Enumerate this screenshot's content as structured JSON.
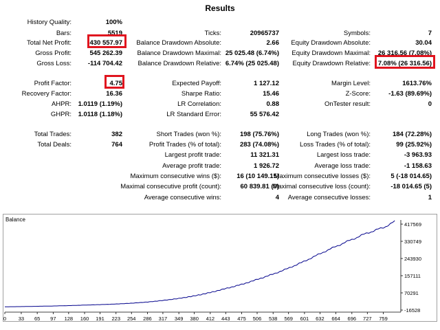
{
  "title": "Results",
  "rows": [
    {
      "y": 27,
      "cols": [
        {
          "label": "History Quality:",
          "value": "100%"
        }
      ]
    },
    {
      "y": 43,
      "cols": [
        {
          "label": "Bars:",
          "value": "5519"
        },
        {
          "label": "Ticks:",
          "value": "20965737"
        },
        {
          "label": "Symbols:",
          "value": "7"
        }
      ]
    },
    {
      "y": 57,
      "cols": [
        {
          "label": "Total Net Profit:",
          "value": "430 557.97"
        },
        {
          "label": "Balance Drawdown Absolute:",
          "value": "2.66"
        },
        {
          "label": "Equity Drawdown Absolute:",
          "value": "30.04"
        }
      ]
    },
    {
      "y": 72,
      "cols": [
        {
          "label": "Gross Profit:",
          "value": "545 262.39"
        },
        {
          "label": "Balance Drawdown Maximal:",
          "value": "25 025.48 (6.74%)"
        },
        {
          "label": "Equity Drawdown Maximal:",
          "value": "26 316.56 (7.08%)"
        }
      ]
    },
    {
      "y": 87,
      "cols": [
        {
          "label": "Gross Loss:",
          "value": "-114 704.42"
        },
        {
          "label": "Balance Drawdown Relative:",
          "value": "6.74% (25 025.48)"
        },
        {
          "label": "Equity Drawdown Relative:",
          "value": "7.08% (26 316.56)"
        }
      ]
    },
    {
      "y": 116,
      "cols": [
        {
          "label": "Profit Factor:",
          "value": "4.75"
        },
        {
          "label": "Expected Payoff:",
          "value": "1 127.12"
        },
        {
          "label": "Margin Level:",
          "value": "1613.76%"
        }
      ]
    },
    {
      "y": 131,
      "cols": [
        {
          "label": "Recovery Factor:",
          "value": "16.36"
        },
        {
          "label": "Sharpe Ratio:",
          "value": "15.46"
        },
        {
          "label": "Z-Score:",
          "value": "-1.63 (89.69%)"
        }
      ]
    },
    {
      "y": 146,
      "cols": [
        {
          "label": "AHPR:",
          "value": "1.0119 (1.19%)"
        },
        {
          "label": "LR Correlation:",
          "value": "0.88"
        },
        {
          "label": "OnTester result:",
          "value": "0"
        }
      ]
    },
    {
      "y": 161,
      "cols": [
        {
          "label": "GHPR:",
          "value": "1.0118 (1.18%)"
        },
        {
          "label": "LR Standard Error:",
          "value": "55 576.42"
        },
        null
      ]
    },
    {
      "y": 190,
      "cols": [
        {
          "label": "Total Trades:",
          "value": "382"
        },
        {
          "label": "Short Trades (won %):",
          "value": "198 (75.76%)"
        },
        {
          "label": "Long Trades (won %):",
          "value": "184 (72.28%)"
        }
      ]
    },
    {
      "y": 205,
      "cols": [
        {
          "label": "Total Deals:",
          "value": "764"
        },
        {
          "label": "Profit Trades (% of total):",
          "value": "283 (74.08%)"
        },
        {
          "label": "Loss Trades (% of total):",
          "value": "99 (25.92%)"
        }
      ]
    },
    {
      "y": 220,
      "cols": [
        null,
        {
          "label": "Largest profit trade:",
          "value": "11 321.31"
        },
        {
          "label": "Largest loss trade:",
          "value": "-3 963.93"
        }
      ]
    },
    {
      "y": 236,
      "cols": [
        null,
        {
          "label": "Average profit trade:",
          "value": "1 926.72"
        },
        {
          "label": "Average loss trade:",
          "value": "-1 158.63"
        }
      ]
    },
    {
      "y": 251,
      "cols": [
        null,
        {
          "label": "Maximum consecutive wins ($):",
          "value": "16 (10 149.15)"
        },
        {
          "label": "Maximum consecutive losses ($):",
          "value": "5 (-18 014.65)"
        }
      ]
    },
    {
      "y": 266,
      "cols": [
        null,
        {
          "label": "Maximal consecutive profit (count):",
          "value": "60 839.81 (9)"
        },
        {
          "label": "Maximal consecutive loss (count):",
          "value": "-18 014.65 (5)"
        }
      ]
    },
    {
      "y": 282,
      "cols": [
        null,
        {
          "label": "Average consecutive wins:",
          "value": "4"
        },
        {
          "label": "Average consecutive losses:",
          "value": "1"
        }
      ]
    }
  ],
  "chart_data": {
    "type": "line",
    "title": "Balance",
    "x_ticks": [
      0,
      33,
      65,
      97,
      128,
      160,
      191,
      223,
      254,
      286,
      317,
      349,
      380,
      412,
      443,
      475,
      506,
      538,
      569,
      601,
      632,
      664,
      696,
      727,
      759
    ],
    "y_ticks": [
      417569,
      330749,
      243930,
      157111,
      70291,
      -16528
    ],
    "ylim": [
      -16528,
      417569
    ],
    "xlim": [
      0,
      790
    ],
    "line_color": "#00008b",
    "series": [
      {
        "x": [
          0,
          33,
          65,
          97,
          128,
          160,
          191,
          223,
          254,
          286,
          317,
          349,
          380,
          412,
          443,
          475,
          506,
          538,
          569,
          601,
          632,
          664,
          696,
          727,
          759,
          782
        ],
        "values": [
          0,
          1000,
          2500,
          4000,
          6000,
          8500,
          11000,
          14000,
          18000,
          24000,
          32000,
          42000,
          55000,
          72000,
          92000,
          113000,
          138000,
          165000,
          195000,
          230000,
          268000,
          305000,
          340000,
          373000,
          400000,
          430558
        ]
      }
    ]
  }
}
